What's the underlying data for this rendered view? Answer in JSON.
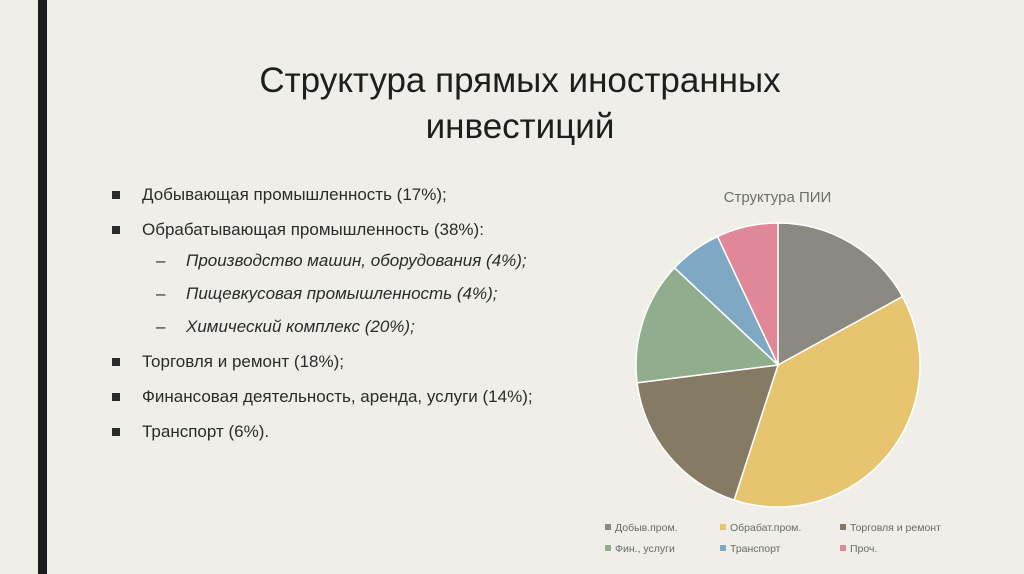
{
  "slide": {
    "title_line1": "Структура прямых иностранных",
    "title_line2": "инвестиций",
    "bullets": [
      {
        "text": "Добывающая промышленность (17%);"
      },
      {
        "text": "Обрабатывающая промышленность (38%):"
      },
      {
        "text": "Торговля и ремонт (18%);"
      },
      {
        "text": "Финансовая деятельность, аренда, услуги (14%);"
      },
      {
        "text": "Транспорт (6%)."
      }
    ],
    "sub_bullets": [
      {
        "text": "Производство машин, оборудования (4%);"
      },
      {
        "text": "Пищевкусовая промышленность (4%);"
      },
      {
        "text": "Химический комплекс (20%);"
      }
    ]
  },
  "chart_data": {
    "type": "pie",
    "title": "Структура ПИИ",
    "categories": [
      "Добыв.пром.",
      "Обрабат.пром.",
      "Торговля и ремонт",
      "Фин., услуги",
      "Транспорт",
      "Проч."
    ],
    "values": [
      17,
      38,
      18,
      14,
      6,
      7
    ],
    "colors": [
      "#8b8a82",
      "#e7c46f",
      "#857a64",
      "#90ad8e",
      "#7fa8c4",
      "#e08898"
    ],
    "legend_position": "bottom"
  }
}
